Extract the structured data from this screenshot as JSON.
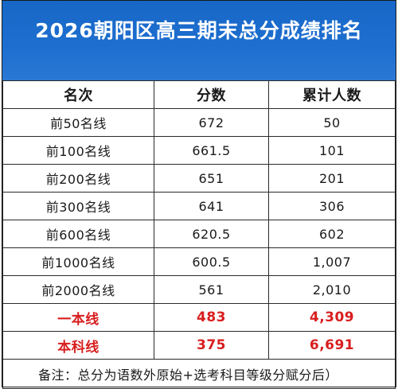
{
  "title": "2026朝阳区高三期末总分成绩排名",
  "table": {
    "headers": [
      "名次",
      "分数",
      "累计人数"
    ],
    "rows": [
      {
        "rank": "前50名线",
        "score": "672",
        "count": "50"
      },
      {
        "rank": "前100名线",
        "score": "661.5",
        "count": "101"
      },
      {
        "rank": "前200名线",
        "score": "651",
        "count": "201"
      },
      {
        "rank": "前300名线",
        "score": "641",
        "count": "306"
      },
      {
        "rank": "前600名线",
        "score": "620.5",
        "count": "602"
      },
      {
        "rank": "前1000名线",
        "score": "600.5",
        "count": "1,007"
      },
      {
        "rank": "前2000名线",
        "score": "561",
        "count": "2,010"
      },
      {
        "rank": "一本线",
        "score": "483",
        "count": "4,309"
      },
      {
        "rank": "本科线",
        "score": "375",
        "count": "6,691"
      }
    ]
  },
  "note": "备注：总分为语数外原始+选考科目等级分赋分后）",
  "colors": {
    "header_bg": "#1e6fd0",
    "highlight": "#d81e1e"
  }
}
